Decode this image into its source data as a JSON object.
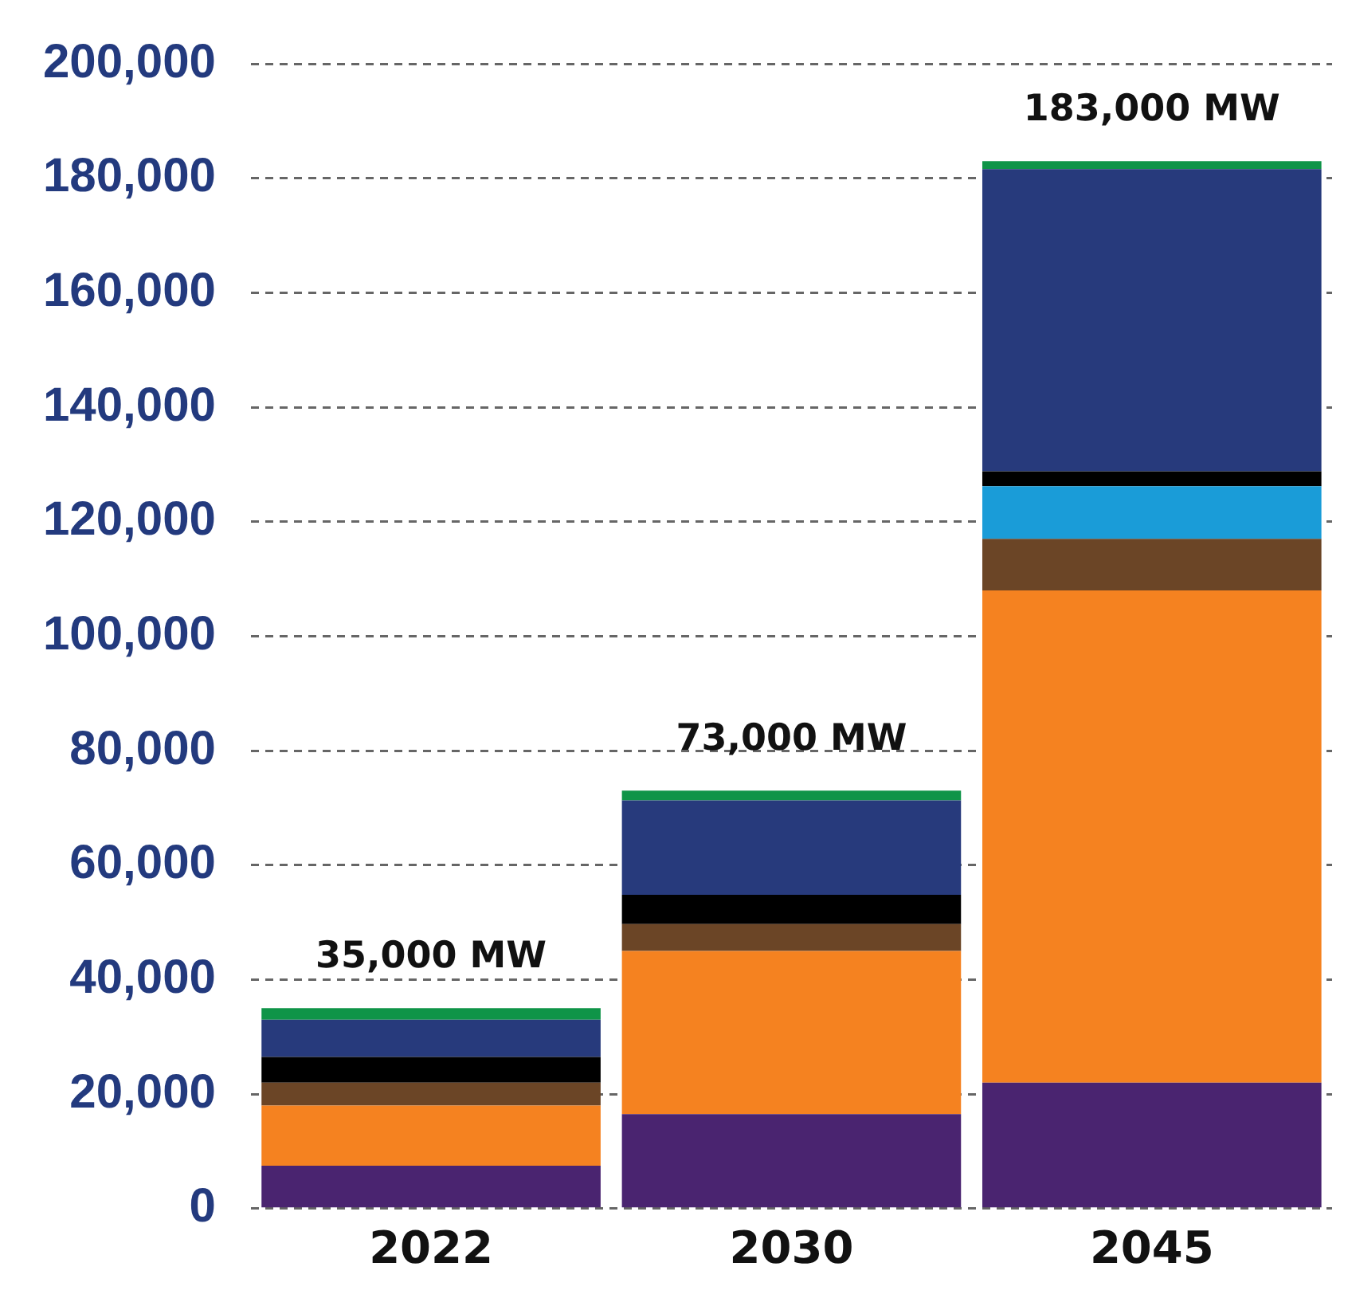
{
  "chart_data": {
    "type": "bar",
    "stacked": true,
    "categories": [
      "2022",
      "2030",
      "2045"
    ],
    "series": [
      {
        "color": "#4a2470",
        "values": [
          7500.0,
          16500.0,
          22000.0
        ]
      },
      {
        "color": "#f58220",
        "values": [
          10500.0,
          28500.0,
          86000.0
        ]
      },
      {
        "color": "#6b4526",
        "values": [
          4000.0,
          4700.0,
          9000.0
        ]
      },
      {
        "color": "#1a9cd8",
        "values": [
          0,
          0,
          9200.0
        ]
      },
      {
        "color": "#000000",
        "values": [
          4500.0,
          5100.0,
          2600.0
        ]
      },
      {
        "color": "#273a7c",
        "values": [
          6500.0,
          16500.0,
          52800.0
        ]
      },
      {
        "color": "#0f9448",
        "values": [
          2000.0,
          1700.0,
          1400.0
        ]
      }
    ],
    "totals": [
      "35,000 MW",
      "73,000 MW",
      "183,000 MW"
    ],
    "ylim": [
      0,
      200000
    ],
    "yticks": [
      {
        "value": 0,
        "label": "0"
      },
      {
        "value": 20000,
        "label": "20,000"
      },
      {
        "value": 40000,
        "label": "40,000"
      },
      {
        "value": 60000,
        "label": "60,000"
      },
      {
        "value": 80000,
        "label": "80,000"
      },
      {
        "value": 100000,
        "label": "100,000"
      },
      {
        "value": 120000,
        "label": "120,000"
      },
      {
        "value": 140000,
        "label": "140,000"
      },
      {
        "value": 160000,
        "label": "160,000"
      },
      {
        "value": 180000,
        "label": "180,000"
      },
      {
        "value": 200000,
        "label": "200,000"
      }
    ],
    "grid": "y",
    "legend": false
  }
}
